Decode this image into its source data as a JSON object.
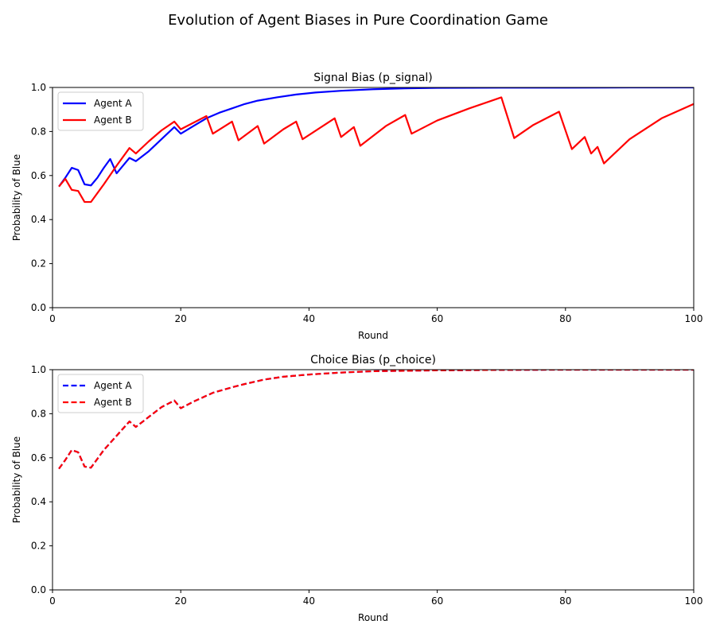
{
  "figure": {
    "title": "Evolution of Agent Biases in Pure Coordination Game"
  },
  "colors": {
    "agent_a": "#0000ff",
    "agent_b": "#ff0000"
  },
  "chart_data": [
    {
      "type": "line",
      "title": "Signal Bias (p_signal)",
      "xlabel": "Round",
      "ylabel": "Probability of Blue",
      "xlim": [
        0,
        100
      ],
      "ylim": [
        0,
        1
      ],
      "xticks": [
        "0",
        "20",
        "40",
        "60",
        "80",
        "100"
      ],
      "yticks": [
        "0.0",
        "0.2",
        "0.4",
        "0.6",
        "0.8",
        "1.0"
      ],
      "grid": false,
      "legend": "upper-left",
      "line_style": "solid",
      "series": [
        {
          "name": "Agent A",
          "points": [
            [
              1,
              0.55
            ],
            [
              2,
              0.59
            ],
            [
              3,
              0.635
            ],
            [
              4,
              0.625
            ],
            [
              5,
              0.56
            ],
            [
              6,
              0.555
            ],
            [
              7,
              0.59
            ],
            [
              8,
              0.635
            ],
            [
              9,
              0.675
            ],
            [
              10,
              0.61
            ],
            [
              11,
              0.645
            ],
            [
              12,
              0.68
            ],
            [
              13,
              0.665
            ],
            [
              15,
              0.71
            ],
            [
              17,
              0.765
            ],
            [
              19,
              0.82
            ],
            [
              20,
              0.79
            ],
            [
              22,
              0.825
            ],
            [
              24,
              0.86
            ],
            [
              26,
              0.885
            ],
            [
              28,
              0.905
            ],
            [
              30,
              0.925
            ],
            [
              32,
              0.94
            ],
            [
              35,
              0.955
            ],
            [
              38,
              0.968
            ],
            [
              41,
              0.977
            ],
            [
              45,
              0.985
            ],
            [
              50,
              0.992
            ],
            [
              55,
              0.996
            ],
            [
              60,
              0.998
            ],
            [
              70,
              0.999
            ],
            [
              80,
              0.999
            ],
            [
              90,
              1.0
            ],
            [
              100,
              1.0
            ]
          ]
        },
        {
          "name": "Agent B",
          "points": [
            [
              1,
              0.55
            ],
            [
              2,
              0.585
            ],
            [
              3,
              0.535
            ],
            [
              4,
              0.53
            ],
            [
              5,
              0.48
            ],
            [
              6,
              0.48
            ],
            [
              8,
              0.56
            ],
            [
              10,
              0.645
            ],
            [
              12,
              0.725
            ],
            [
              13,
              0.7
            ],
            [
              15,
              0.755
            ],
            [
              17,
              0.805
            ],
            [
              19,
              0.845
            ],
            [
              20,
              0.81
            ],
            [
              24,
              0.87
            ],
            [
              25,
              0.79
            ],
            [
              28,
              0.845
            ],
            [
              29,
              0.76
            ],
            [
              32,
              0.825
            ],
            [
              33,
              0.745
            ],
            [
              36,
              0.81
            ],
            [
              38,
              0.845
            ],
            [
              39,
              0.765
            ],
            [
              44,
              0.86
            ],
            [
              45,
              0.775
            ],
            [
              47,
              0.82
            ],
            [
              48,
              0.735
            ],
            [
              52,
              0.825
            ],
            [
              55,
              0.875
            ],
            [
              56,
              0.79
            ],
            [
              60,
              0.85
            ],
            [
              65,
              0.905
            ],
            [
              70,
              0.955
            ],
            [
              72,
              0.77
            ],
            [
              75,
              0.83
            ],
            [
              79,
              0.89
            ],
            [
              81,
              0.72
            ],
            [
              83,
              0.775
            ],
            [
              84,
              0.7
            ],
            [
              85,
              0.73
            ],
            [
              86,
              0.655
            ],
            [
              90,
              0.765
            ],
            [
              95,
              0.86
            ],
            [
              100,
              0.925
            ]
          ]
        }
      ]
    },
    {
      "type": "line",
      "title": "Choice Bias (p_choice)",
      "xlabel": "Round",
      "ylabel": "Probability of Blue",
      "xlim": [
        0,
        100
      ],
      "ylim": [
        0,
        1
      ],
      "xticks": [
        "0",
        "20",
        "40",
        "60",
        "80",
        "100"
      ],
      "yticks": [
        "0.0",
        "0.2",
        "0.4",
        "0.6",
        "0.8",
        "1.0"
      ],
      "grid": false,
      "legend": "upper-left",
      "line_style": "dashed",
      "series": [
        {
          "name": "Agent A",
          "points": [
            [
              1,
              0.55
            ],
            [
              2,
              0.59
            ],
            [
              3,
              0.635
            ],
            [
              4,
              0.625
            ],
            [
              5,
              0.56
            ],
            [
              6,
              0.555
            ],
            [
              8,
              0.635
            ],
            [
              10,
              0.7
            ],
            [
              12,
              0.765
            ],
            [
              13,
              0.74
            ],
            [
              15,
              0.785
            ],
            [
              17,
              0.83
            ],
            [
              19,
              0.86
            ],
            [
              20,
              0.825
            ],
            [
              22,
              0.855
            ],
            [
              25,
              0.895
            ],
            [
              28,
              0.92
            ],
            [
              30,
              0.935
            ],
            [
              33,
              0.955
            ],
            [
              36,
              0.968
            ],
            [
              40,
              0.978
            ],
            [
              45,
              0.987
            ],
            [
              50,
              0.993
            ],
            [
              60,
              0.997
            ],
            [
              70,
              0.999
            ],
            [
              80,
              1.0
            ],
            [
              100,
              1.0
            ]
          ]
        },
        {
          "name": "Agent B",
          "points": [
            [
              1,
              0.55
            ],
            [
              2,
              0.59
            ],
            [
              3,
              0.635
            ],
            [
              4,
              0.625
            ],
            [
              5,
              0.56
            ],
            [
              6,
              0.555
            ],
            [
              8,
              0.635
            ],
            [
              10,
              0.7
            ],
            [
              12,
              0.765
            ],
            [
              13,
              0.74
            ],
            [
              15,
              0.785
            ],
            [
              17,
              0.83
            ],
            [
              19,
              0.86
            ],
            [
              20,
              0.825
            ],
            [
              22,
              0.855
            ],
            [
              25,
              0.895
            ],
            [
              28,
              0.92
            ],
            [
              30,
              0.935
            ],
            [
              33,
              0.955
            ],
            [
              36,
              0.968
            ],
            [
              40,
              0.978
            ],
            [
              45,
              0.987
            ],
            [
              50,
              0.993
            ],
            [
              60,
              0.997
            ],
            [
              70,
              0.999
            ],
            [
              80,
              1.0
            ],
            [
              100,
              1.0
            ]
          ]
        }
      ]
    }
  ]
}
